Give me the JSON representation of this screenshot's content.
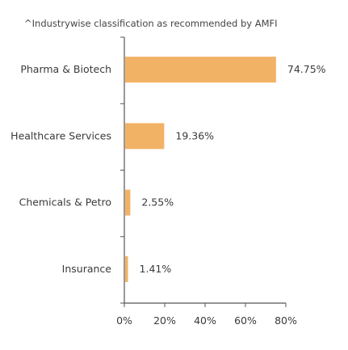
{
  "note": "^Industrywise classification as recommended by AMFI",
  "chart_data": {
    "type": "bar",
    "orientation": "horizontal",
    "categories": [
      "Pharma & Biotech",
      "Healthcare Services",
      "Chemicals & Petro",
      "Insurance"
    ],
    "values": [
      74.75,
      19.36,
      2.55,
      1.41
    ],
    "value_labels": [
      "74.75%",
      "19.36%",
      "2.55%",
      "1.41%"
    ],
    "xlim": [
      0,
      80
    ],
    "xticks": [
      0,
      20,
      40,
      60,
      80
    ],
    "xtick_labels": [
      "0%",
      "20%",
      "40%",
      "60%",
      "80%"
    ],
    "title": "",
    "xlabel": "",
    "ylabel": "",
    "grid": false,
    "bar_color": "#f2b266",
    "axis_color": "#555555"
  }
}
